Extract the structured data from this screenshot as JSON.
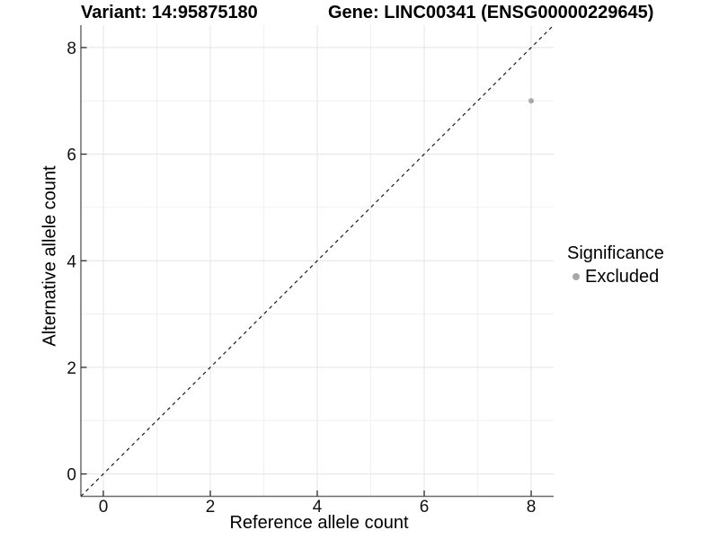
{
  "header": {
    "variant_title": "Variant: 14:95875180",
    "gene_title": "Gene: LINC00341 (ENSG00000229645)"
  },
  "legend": {
    "title": "Significance",
    "items": [
      {
        "label": "Excluded",
        "color": "#a9a9a9"
      }
    ]
  },
  "chart_data": {
    "type": "scatter",
    "title": "Variant: 14:95875180 / Gene: LINC00341 (ENSG00000229645)",
    "xlabel": "Reference allele count",
    "ylabel": "Alternative allele count",
    "xlim": [
      -0.42,
      8.42
    ],
    "ylim": [
      -0.42,
      8.42
    ],
    "xticks": [
      0,
      2,
      4,
      6,
      8
    ],
    "yticks": [
      0,
      2,
      4,
      6,
      8
    ],
    "minor_ticks": [
      1,
      3,
      5,
      7
    ],
    "grid": true,
    "legend_position": "right",
    "series": [
      {
        "name": "Excluded",
        "color": "#a9a9a9",
        "points": [
          {
            "x": 8,
            "y": 7
          }
        ]
      }
    ],
    "reference_line": {
      "kind": "identity",
      "style": "dashed",
      "color": "#1a1a1a"
    }
  },
  "colors": {
    "background": "#ffffff",
    "grid_major": "#e4e4e4",
    "grid_minor": "#f0f0f0",
    "axis_line": "#6b6b6b",
    "tick_mark": "#2b2b2b",
    "point": "#a9a9a9"
  }
}
